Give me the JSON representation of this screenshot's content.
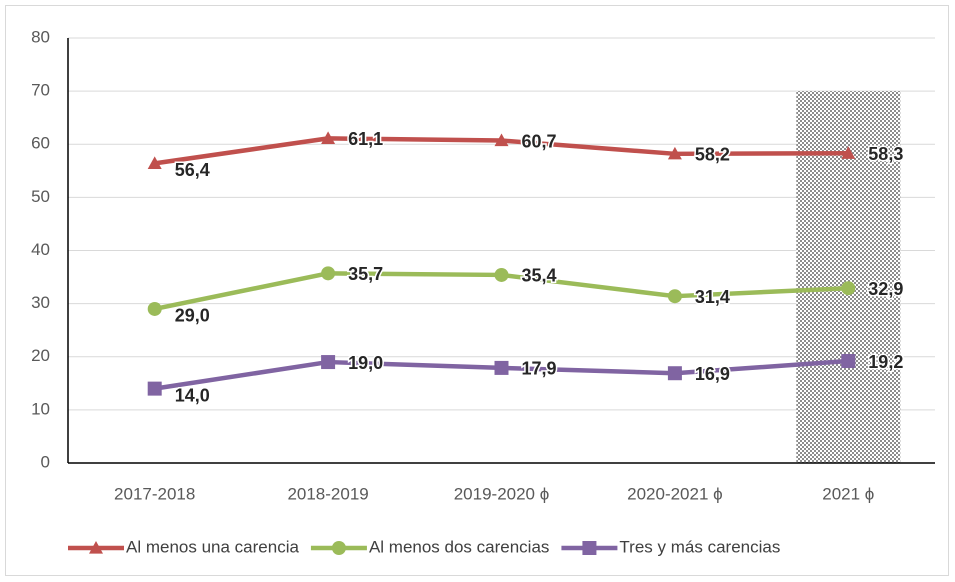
{
  "chart_data": {
    "type": "line",
    "categories": [
      "2017-2018",
      "2018-2019",
      "2019-2020 ϕ",
      "2020-2021 ϕ",
      "2021 ϕ"
    ],
    "series": [
      {
        "name": "Al menos una carencia",
        "color": "#c0504d",
        "marker": "triangle",
        "values": [
          56.4,
          61.1,
          60.7,
          58.2,
          58.3
        ],
        "value_labels": [
          "56,4",
          "61,1",
          "60,7",
          "58,2",
          "58,3"
        ]
      },
      {
        "name": "Al menos dos carencias",
        "color": "#9bbb59",
        "marker": "circle",
        "values": [
          29.0,
          35.7,
          35.4,
          31.4,
          32.9
        ],
        "value_labels": [
          "29,0",
          "35,7",
          "35,4",
          "31,4",
          "32,9"
        ]
      },
      {
        "name": "Tres y más carencias",
        "color": "#8064a2",
        "marker": "square",
        "values": [
          14.0,
          19.0,
          17.9,
          16.9,
          19.2
        ],
        "value_labels": [
          "14,0",
          "19,0",
          "17,9",
          "16,9",
          "19,2"
        ]
      }
    ],
    "ylim": [
      0,
      80
    ],
    "yticks": [
      0,
      10,
      20,
      30,
      40,
      50,
      60,
      70,
      80
    ],
    "grid": true,
    "shaded": {
      "x": 4,
      "ylim": [
        0,
        70
      ]
    },
    "legend": "bottom"
  }
}
